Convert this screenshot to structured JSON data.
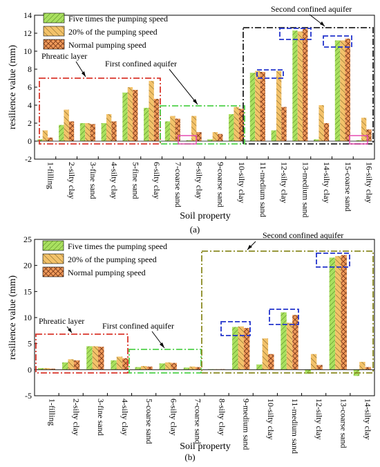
{
  "colors": {
    "five_times": "#a9e05f",
    "twenty_percent": "#f3c26a",
    "normal": "#f09a5a",
    "phreatic_box": "#d9362b",
    "first_aquifer_box": "#4ed14a",
    "second_aquifer_box_a": "#222222",
    "second_aquifer_box_b": "#8a8a22",
    "highlight_box": "#2233cc",
    "pink_box": "#e64ab0"
  },
  "chart_data": [
    {
      "type": "bar",
      "panel_label": "(a)",
      "xlabel": "Soil property",
      "ylabel": "resilience value (mm)",
      "ylim": [
        -2,
        14
      ],
      "yticks": [
        "-2",
        "0",
        "2",
        "4",
        "6",
        "8",
        "10",
        "12",
        "14"
      ],
      "grid": false,
      "legend_position": "top-left",
      "categories": [
        "1-filling",
        "2-silty clay",
        "3-fine sand",
        "4-silty clay",
        "5-fine sand",
        "6-silty clay",
        "7-coarse sand",
        "8-silty clay",
        "9-coarse sand",
        "10-silty clay",
        "11-medium sand",
        "12-silty clay",
        "13-medium sand",
        "14-silty clay",
        "15-coarse sand",
        "16-silty clay"
      ],
      "series": [
        {
          "name": "Five times the pumping speed",
          "values": [
            0.2,
            1.8,
            2.0,
            2.0,
            5.4,
            3.7,
            2.2,
            0.1,
            0.2,
            3.0,
            7.6,
            1.2,
            12.3,
            0.2,
            11.2,
            0.1
          ]
        },
        {
          "name": "20% of the pumping speed",
          "values": [
            1.2,
            3.5,
            2.0,
            3.0,
            6.0,
            6.7,
            2.8,
            2.8,
            1.0,
            3.8,
            7.8,
            7.8,
            12.2,
            4.0,
            11.2,
            2.6
          ]
        },
        {
          "name": "Normal pumping speed",
          "values": [
            0.4,
            2.2,
            1.9,
            2.2,
            5.7,
            4.7,
            2.5,
            1.0,
            0.8,
            3.6,
            7.7,
            3.8,
            12.5,
            2.0,
            11.4,
            1.3
          ]
        }
      ],
      "annotations": [
        "Phreatic layer",
        "First confined aquifer",
        "Second confined aquifer"
      ]
    },
    {
      "type": "bar",
      "panel_label": "(b)",
      "xlabel": "Soil property",
      "ylabel": "resilience value (mm)",
      "ylim": [
        -5,
        25
      ],
      "yticks": [
        "-5",
        "0",
        "5",
        "10",
        "15",
        "20",
        "25"
      ],
      "grid": false,
      "legend_position": "top-left",
      "categories": [
        "1-filling",
        "2-silty clay",
        "3-fine sand",
        "4-silty clay",
        "5-coarse sand",
        "6-silty clay",
        "7-coarse sand",
        "8-silty clay",
        "9-medium sand",
        "10-silty clay",
        "11-medium sand",
        "12-silty clay",
        "13-coarse sand",
        "14-silty clay"
      ],
      "series": [
        {
          "name": "Five times the pumping speed",
          "values": [
            0.3,
            1.4,
            4.5,
            1.8,
            0.5,
            1.2,
            0.4,
            0.1,
            8.2,
            1.0,
            11.0,
            -0.8,
            21.5,
            -1.2
          ]
        },
        {
          "name": "20% of the pumping speed",
          "values": [
            0.3,
            2.0,
            4.5,
            2.5,
            0.7,
            1.4,
            0.6,
            0.1,
            8.3,
            6.0,
            9.0,
            3.0,
            21.8,
            1.5
          ]
        },
        {
          "name": "Normal pumping speed",
          "values": [
            0.2,
            1.8,
            4.4,
            2.2,
            0.6,
            1.3,
            0.5,
            0.1,
            8.0,
            3.0,
            10.5,
            0.9,
            22.0,
            0.5
          ]
        }
      ],
      "annotations": [
        "Phreatic layer",
        "First confined aquifer",
        "Second confined aquifer"
      ]
    }
  ]
}
